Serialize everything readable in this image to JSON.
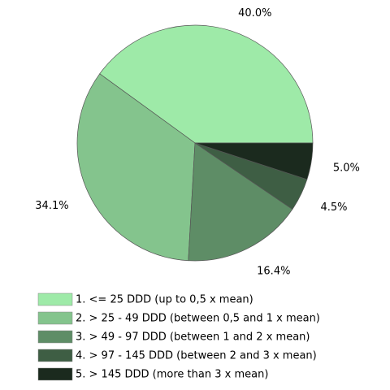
{
  "chart_data": {
    "type": "pie",
    "categories": [
      "1. <= 25 DDD (up to 0,5 x mean)",
      "2. > 25 - 49 DDD (between 0,5 and 1 x mean)",
      "3. > 49 - 97 DDD (between 1 and 2 x mean)",
      "4. > 97 - 145 DDD (between 2 and 3 x mean)",
      "5. > 145 DDD (more than 3 x mean)"
    ],
    "values": [
      40.0,
      34.1,
      16.4,
      4.5,
      5.0
    ],
    "value_labels": [
      "40.0%",
      "34.1%",
      "16.4%",
      "4.5%",
      "5.0%"
    ],
    "colors": [
      "#9eeaa8",
      "#84c48d",
      "#5e8d66",
      "#3e5e44",
      "#1b2a1e"
    ],
    "legend": "bottom"
  }
}
